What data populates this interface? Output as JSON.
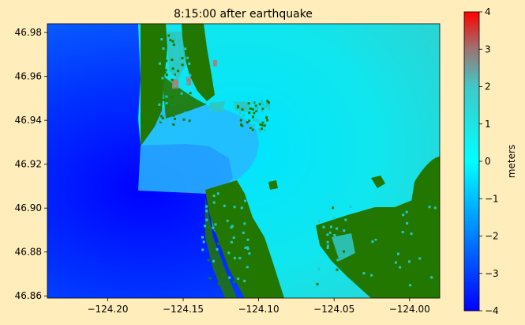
{
  "chart_data": {
    "type": "heatmap",
    "title": "8:15:00 after earthquake",
    "xlabel": "",
    "ylabel": "",
    "xlim": [
      -124.24,
      -123.98
    ],
    "ylim": [
      46.859,
      46.984
    ],
    "x_ticks": [
      {
        "value": -124.2,
        "label": "−124.20"
      },
      {
        "value": -124.15,
        "label": "−124.15"
      },
      {
        "value": -124.1,
        "label": "−124.10"
      },
      {
        "value": -124.05,
        "label": "−124.05"
      },
      {
        "value": -124.0,
        "label": "−124.00"
      }
    ],
    "y_ticks": [
      {
        "value": 46.86,
        "label": "46.86"
      },
      {
        "value": 46.88,
        "label": "46.88"
      },
      {
        "value": 46.9,
        "label": "46.90"
      },
      {
        "value": 46.92,
        "label": "46.92"
      },
      {
        "value": 46.94,
        "label": "46.94"
      },
      {
        "value": 46.96,
        "label": "46.96"
      },
      {
        "value": 46.98,
        "label": "46.98"
      }
    ],
    "grid": false,
    "colorbar": {
      "label": "meters",
      "range": [
        -4,
        4
      ],
      "ticks": [
        {
          "value": 4,
          "label": "4"
        },
        {
          "value": 3,
          "label": "3"
        },
        {
          "value": 2,
          "label": "2"
        },
        {
          "value": 1,
          "label": "1"
        },
        {
          "value": 0,
          "label": "0"
        },
        {
          "value": -1,
          "label": "−1"
        },
        {
          "value": -2,
          "label": "−2"
        },
        {
          "value": -3,
          "label": "−3"
        },
        {
          "value": -4,
          "label": "−4"
        }
      ],
      "colors": [
        "#0000ff",
        "#00ffff",
        "#ff0000"
      ]
    },
    "land_color": "#227700",
    "background_color": "#ffeebb"
  }
}
